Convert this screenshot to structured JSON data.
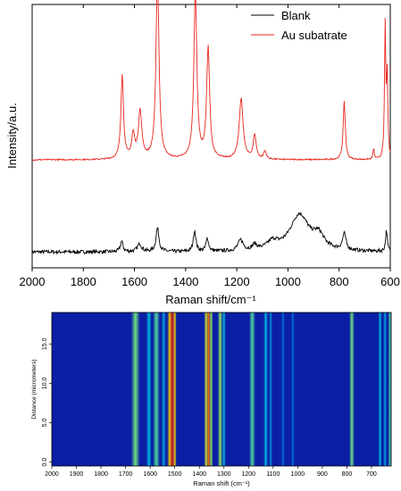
{
  "chart_data": [
    {
      "type": "line",
      "xlabel": "Raman shift/cm⁻¹",
      "ylabel": "Intensity/a.u.",
      "xlim": [
        2000,
        600
      ],
      "ylim": [
        0,
        100
      ],
      "x_reversed": true,
      "xticks": [
        2000,
        1800,
        1600,
        1400,
        1200,
        1000,
        800,
        600
      ],
      "yticks_shown": false,
      "grid": false,
      "legend_position": "top-right",
      "series": [
        {
          "name": "Blank",
          "color": "#000000",
          "baseline": 6,
          "peaks": [
            {
              "x": 1650,
              "h": 4,
              "w": 6
            },
            {
              "x": 1580,
              "h": 3,
              "w": 10
            },
            {
              "x": 1510,
              "h": 9,
              "w": 7
            },
            {
              "x": 1365,
              "h": 8,
              "w": 6
            },
            {
              "x": 1315,
              "h": 5,
              "w": 6
            },
            {
              "x": 1185,
              "h": 4,
              "w": 12
            },
            {
              "x": 1130,
              "h": 2,
              "w": 10
            },
            {
              "x": 1060,
              "h": 3,
              "w": 25
            },
            {
              "x": 955,
              "h": 14,
              "w": 45
            },
            {
              "x": 880,
              "h": 5,
              "w": 25
            },
            {
              "x": 780,
              "h": 6,
              "w": 8
            },
            {
              "x": 615,
              "h": 8,
              "w": 4
            }
          ]
        },
        {
          "name": "Au subatrate",
          "color": "#e8261e",
          "baseline": 41,
          "peaks": [
            {
              "x": 1648,
              "h": 32,
              "w": 6
            },
            {
              "x": 1605,
              "h": 9,
              "w": 7
            },
            {
              "x": 1578,
              "h": 18,
              "w": 8
            },
            {
              "x": 1510,
              "h": 70,
              "w": 7
            },
            {
              "x": 1362,
              "h": 63,
              "w": 7
            },
            {
              "x": 1312,
              "h": 42,
              "w": 7
            },
            {
              "x": 1183,
              "h": 23,
              "w": 9
            },
            {
              "x": 1130,
              "h": 9,
              "w": 7
            },
            {
              "x": 1090,
              "h": 3,
              "w": 6
            },
            {
              "x": 780,
              "h": 22,
              "w": 5
            },
            {
              "x": 665,
              "h": 4,
              "w": 3
            },
            {
              "x": 620,
              "h": 50,
              "w": 3
            },
            {
              "x": 612,
              "h": 30,
              "w": 3
            }
          ]
        }
      ]
    },
    {
      "type": "heatmap",
      "xlabel": "Raman shift (cm⁻¹)",
      "ylabel": "Distance (micrometers)",
      "xlim": [
        2000,
        620
      ],
      "ylim": [
        -0.5,
        19
      ],
      "x_reversed": true,
      "xticks": [
        2000,
        1900,
        1800,
        1700,
        1600,
        1500,
        1400,
        1300,
        1200,
        1100,
        1000,
        900,
        800,
        700
      ],
      "yticks": [
        0.0,
        5.0,
        10.0,
        15.0
      ],
      "bands": [
        {
          "x": 1660,
          "w": 10,
          "level": 0.55
        },
        {
          "x": 1605,
          "w": 6,
          "level": 0.35
        },
        {
          "x": 1575,
          "w": 8,
          "level": 0.5
        },
        {
          "x": 1545,
          "w": 5,
          "level": 0.3
        },
        {
          "x": 1520,
          "w": 6,
          "level": 0.8
        },
        {
          "x": 1510,
          "w": 5,
          "level": 1.0
        },
        {
          "x": 1500,
          "w": 4,
          "level": 0.8
        },
        {
          "x": 1372,
          "w": 5,
          "level": 0.7
        },
        {
          "x": 1362,
          "w": 5,
          "level": 0.9
        },
        {
          "x": 1352,
          "w": 4,
          "level": 0.6
        },
        {
          "x": 1315,
          "w": 6,
          "level": 0.6
        },
        {
          "x": 1300,
          "w": 4,
          "level": 0.35
        },
        {
          "x": 1185,
          "w": 7,
          "level": 0.5
        },
        {
          "x": 1130,
          "w": 5,
          "level": 0.35
        },
        {
          "x": 1110,
          "w": 4,
          "level": 0.25
        },
        {
          "x": 1060,
          "w": 4,
          "level": 0.18
        },
        {
          "x": 1020,
          "w": 4,
          "level": 0.18
        },
        {
          "x": 780,
          "w": 6,
          "level": 0.55
        },
        {
          "x": 665,
          "w": 4,
          "level": 0.35
        },
        {
          "x": 645,
          "w": 4,
          "level": 0.3
        },
        {
          "x": 625,
          "w": 4,
          "level": 0.5
        }
      ]
    }
  ]
}
